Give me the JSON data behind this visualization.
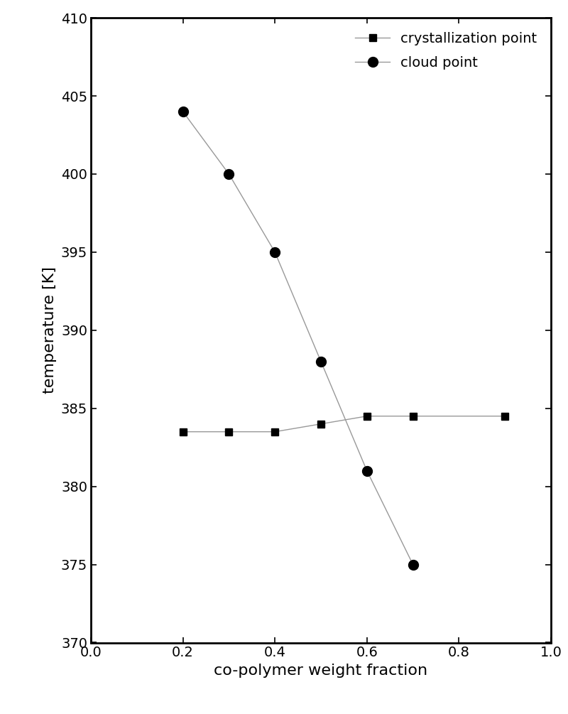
{
  "crystallization_x": [
    0.2,
    0.3,
    0.4,
    0.5,
    0.6,
    0.7,
    0.9
  ],
  "crystallization_y": [
    383.5,
    383.5,
    383.5,
    384.0,
    384.5,
    384.5,
    384.5
  ],
  "cloud_x": [
    0.2,
    0.3,
    0.4,
    0.5,
    0.6,
    0.7
  ],
  "cloud_y": [
    404.0,
    400.0,
    395.0,
    388.0,
    381.0,
    375.0
  ],
  "xlabel": "co-polymer weight fraction",
  "ylabel": "temperature [K]",
  "xlim": [
    0.0,
    1.0
  ],
  "ylim": [
    370,
    410
  ],
  "xticks": [
    0.0,
    0.2,
    0.4,
    0.6,
    0.8,
    1.0
  ],
  "yticks": [
    370,
    375,
    380,
    385,
    390,
    395,
    400,
    405,
    410
  ],
  "line_color": "#999999",
  "marker_color": "#000000",
  "crystallization_label": "crystallization point",
  "cloud_label": "cloud point",
  "marker_size_square": 7,
  "marker_size_circle": 10,
  "linewidth": 1.0,
  "background_color": "#ffffff",
  "legend_loc": "upper right",
  "spine_linewidth": 2.0,
  "tick_labelsize": 14,
  "axis_labelsize": 16,
  "legend_fontsize": 14
}
